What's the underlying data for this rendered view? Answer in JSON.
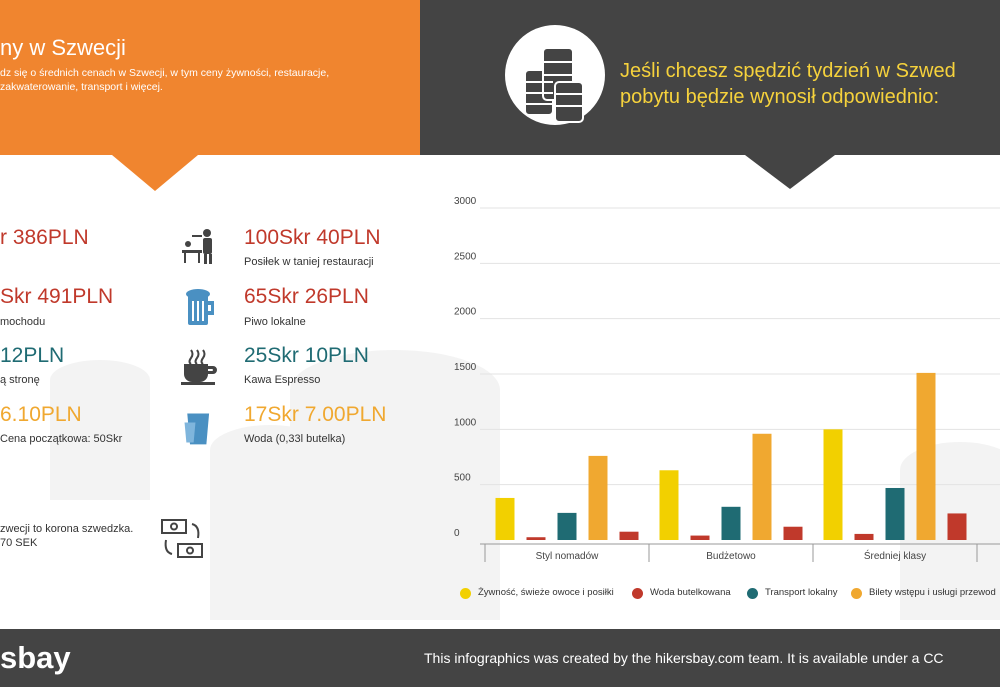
{
  "header_left": {
    "title": "ny w Szwecji",
    "description_line1": "dz się o średnich cenach w Szwecji, w tym ceny żywności, restauracje,",
    "description_line2": "zakwaterowanie, transport i więcej."
  },
  "header_right": {
    "line1": "Jeśli chcesz spędzić tydzień w Szwed",
    "line2": "pobytu będzie wynosił odpowiednio:"
  },
  "prices_left": [
    {
      "price": "r 386PLN",
      "label": "",
      "color": "#c0392b"
    },
    {
      "price": "Skr 491PLN",
      "label": "mochodu",
      "color": "#c0392b"
    },
    {
      "price": "12PLN",
      "label": "ą stronę",
      "color": "#1f6b73"
    },
    {
      "price": "6.10PLN",
      "label": "Cena początkowa: 50Skr",
      "color": "#f0a830"
    }
  ],
  "prices_right": [
    {
      "price": "100Skr 40PLN",
      "label": "Posiłek w taniej restauracji",
      "color": "#c0392b",
      "icon": "waiter-icon"
    },
    {
      "price": "65Skr 26PLN",
      "label": "Piwo lokalne",
      "color": "#c0392b",
      "icon": "beer-mug-icon"
    },
    {
      "price": "25Skr 10PLN",
      "label": "Kawa Espresso",
      "color": "#1f6b73",
      "icon": "coffee-cup-icon"
    },
    {
      "price": "17Skr 7.00PLN",
      "label": "Woda (0,33l butelka)",
      "color": "#f0a830",
      "icon": "water-glass-icon"
    }
  ],
  "currency_note": {
    "line1": "zwecji to korona szwedzka.",
    "line2": "70 SEK"
  },
  "chart_data": {
    "type": "bar",
    "categories": [
      "Styl nomadów",
      "Budżetowo",
      "Średniej klasy"
    ],
    "series": [
      {
        "name": "Żywność, świeże owoce i posiłki",
        "color": "#f2d000",
        "values": [
          380,
          630,
          1000
        ]
      },
      {
        "name": "Woda butelkowana",
        "color": "#c0392b",
        "values": [
          25,
          40,
          55
        ]
      },
      {
        "name": "Transport lokalny",
        "color": "#1f6b73",
        "values": [
          245,
          300,
          470
        ]
      },
      {
        "name": "Bilety wstępu i usługi przewod",
        "color": "#f0a830",
        "values": [
          760,
          960,
          1510
        ]
      },
      {
        "name": "",
        "color": "#c0392b",
        "values": [
          75,
          120,
          240
        ]
      }
    ],
    "yticks": [
      "0",
      "500",
      "1000",
      "1500",
      "2000",
      "2500",
      "3000"
    ],
    "ylim": [
      0,
      3000
    ],
    "legend_position": "bottom"
  },
  "footer": {
    "logo": "sbay",
    "text": "This infographics was created by the hikersbay.com team. It is available under a CC"
  }
}
